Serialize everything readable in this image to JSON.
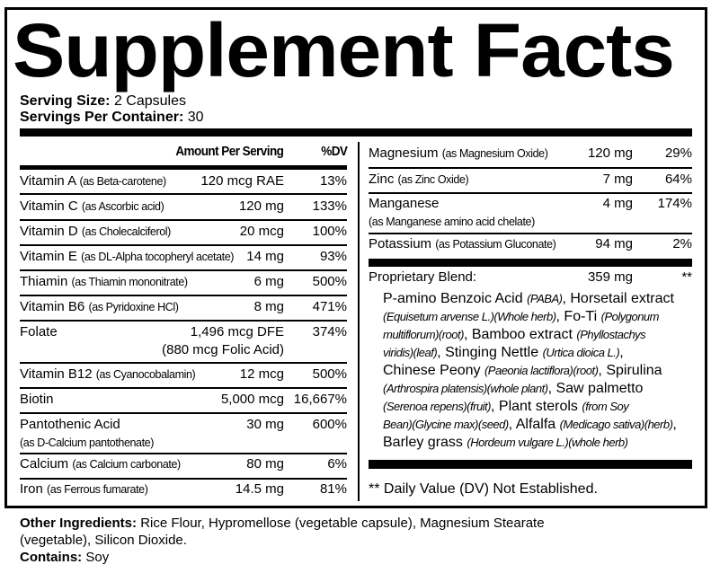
{
  "title": "Supplement Facts",
  "serving": {
    "size_label": "Serving Size:",
    "size_value": "2 Capsules",
    "per_container_label": "Servings Per Container:",
    "per_container_value": "30"
  },
  "header": {
    "amount": "Amount Per Serving",
    "dv": "%DV"
  },
  "left_rows": [
    {
      "name": "Vitamin A",
      "source": "(as Beta-carotene)",
      "amount": "120 mcg RAE",
      "dv": "13%"
    },
    {
      "name": "Vitamin C",
      "source": "(as Ascorbic acid)",
      "amount": "120 mg",
      "dv": "133%"
    },
    {
      "name": "Vitamin D",
      "source": "(as Cholecalciferol)",
      "amount": "20 mcg",
      "dv": "100%"
    },
    {
      "name": "Vitamin E",
      "source": "(as DL-Alpha tocopheryl acetate)",
      "amount": "14 mg",
      "dv": "93%"
    },
    {
      "name": "Thiamin",
      "source": "(as Thiamin mononitrate)",
      "amount": "6 mg",
      "dv": "500%"
    },
    {
      "name": "Vitamin B6",
      "source": "(as Pyridoxine HCl)",
      "amount": "8 mg",
      "dv": "471%"
    },
    {
      "name": "Folate",
      "source": "",
      "amount": "1,496 mcg DFE",
      "amount2": "(880 mcg Folic Acid)",
      "dv": "374%"
    },
    {
      "name": "Vitamin B12",
      "source": "(as Cyanocobalamin)",
      "amount": "12 mcg",
      "dv": "500%"
    },
    {
      "name": "Biotin",
      "source": "",
      "amount": "5,000 mcg",
      "dv": "16,667%"
    },
    {
      "name": "Pantothenic Acid",
      "source2": "(as  D-Calcium pantothenate)",
      "amount": "30 mg",
      "dv": "600%"
    },
    {
      "name": "Calcium",
      "source": "(as Calcium carbonate)",
      "amount": "80 mg",
      "dv": "6%"
    },
    {
      "name": "Iron",
      "source": "(as Ferrous fumarate)",
      "amount": "14.5 mg",
      "dv": "81%"
    }
  ],
  "right_rows": [
    {
      "name": "Magnesium",
      "source": "(as Magnesium Oxide)",
      "amount": "120 mg",
      "dv": "29%"
    },
    {
      "name": "Zinc",
      "source": "(as Zinc Oxide)",
      "amount": "7 mg",
      "dv": "64%"
    },
    {
      "name": "Manganese",
      "source2": "(as Manganese amino acid chelate)",
      "amount": "4 mg",
      "dv": "174%"
    },
    {
      "name": "Potassium",
      "source": "(as Potassium Gluconate)",
      "amount": "94 mg",
      "dv": "2%"
    }
  ],
  "blend": {
    "name": "Proprietary Blend:",
    "amount": "359 mg",
    "dv": "**",
    "lines": [
      [
        {
          "t": "P-amino Benzoic Acid "
        },
        {
          "t": "(PABA)",
          "i": true
        },
        {
          "t": ", Horsetail extract"
        }
      ],
      [
        {
          "t": "(Equisetum arvense L.)(Whole herb)",
          "i": true
        },
        {
          "t": ", Fo-Ti "
        },
        {
          "t": "(Polygonum",
          "i": true
        }
      ],
      [
        {
          "t": "multiflorum)(root)",
          "i": true
        },
        {
          "t": ", Bamboo extract "
        },
        {
          "t": "(Phyllostachys",
          "i": true
        }
      ],
      [
        {
          "t": "viridis)(leaf)",
          "i": true
        },
        {
          "t": ", Stinging Nettle  "
        },
        {
          "t": "(Urtica dioica L.)",
          "i": true
        },
        {
          "t": ","
        }
      ],
      [
        {
          "t": "Chinese Peony "
        },
        {
          "t": "(Paeonia lactiflora)(root)",
          "i": true
        },
        {
          "t": ", Spirulina"
        }
      ],
      [
        {
          "t": "(Arthrospira platensis)(whole plant)",
          "i": true
        },
        {
          "t": ", Saw palmetto"
        }
      ],
      [
        {
          "t": "(Serenoa repens)(fruit)",
          "i": true
        },
        {
          "t": ", Plant sterols "
        },
        {
          "t": "(from Soy",
          "i": true
        }
      ],
      [
        {
          "t": "Bean)(Glycine max)(seed)",
          "i": true
        },
        {
          "t": ", Alfalfa "
        },
        {
          "t": "(Medicago sativa)(herb)",
          "i": true
        },
        {
          "t": ","
        }
      ],
      [
        {
          "t": "Barley grass "
        },
        {
          "t": "(Hordeum vulgare L.)(whole herb)",
          "i": true
        }
      ]
    ]
  },
  "footnote": "** Daily Value (DV) Not Established.",
  "other": {
    "label": "Other Ingredients:",
    "text_line1": "Rice Flour, Hypromellose (vegetable capsule), Magnesium Stearate",
    "text_line2": "(vegetable), Silicon Dioxide.",
    "contains_label": "Contains:",
    "contains_value": "Soy"
  }
}
